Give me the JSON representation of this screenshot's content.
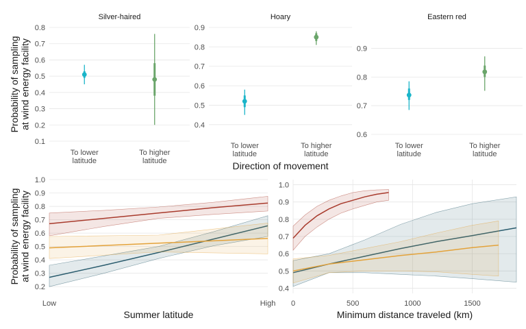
{
  "chart_data": [
    {
      "type": "scatter",
      "title": "Silver-haired",
      "ylabel": "Probability of sampling\nat wind energy facility",
      "xlabel": "",
      "categories": [
        "To lower\nlatitude",
        "To higher\nlatitude"
      ],
      "ylim": [
        0.1,
        0.8
      ],
      "yticks": [
        0.1,
        0.2,
        0.3,
        0.4,
        0.5,
        0.6,
        0.7,
        0.8
      ],
      "grid": true,
      "points": [
        {
          "category": "To lower\nlatitude",
          "estimate": 0.51,
          "inner": [
            0.49,
            0.53
          ],
          "outer": [
            0.45,
            0.57
          ],
          "color": "#1bb5c9"
        },
        {
          "category": "To higher\nlatitude",
          "estimate": 0.48,
          "inner": [
            0.38,
            0.58
          ],
          "outer": [
            0.2,
            0.76
          ],
          "color": "#6aa56a"
        }
      ]
    },
    {
      "type": "scatter",
      "title": "Hoary",
      "xlabel": "Direction of movement",
      "categories": [
        "To lower\nlatitude",
        "To higher\nlatitude"
      ],
      "ylim": [
        0.35,
        0.9
      ],
      "yticks": [
        0.4,
        0.5,
        0.6,
        0.7,
        0.8,
        0.9
      ],
      "grid": true,
      "points": [
        {
          "category": "To lower\nlatitude",
          "estimate": 0.52,
          "inner": [
            0.49,
            0.55
          ],
          "outer": [
            0.45,
            0.58
          ],
          "color": "#1bb5c9"
        },
        {
          "category": "To higher\nlatitude",
          "estimate": 0.85,
          "inner": [
            0.83,
            0.87
          ],
          "outer": [
            0.81,
            0.88
          ],
          "color": "#6aa56a"
        }
      ]
    },
    {
      "type": "scatter",
      "title": "Eastern red",
      "xlabel": "",
      "categories": [
        "To lower\nlatitude",
        "To higher\nlatitude"
      ],
      "ylim": [
        0.6,
        0.93
      ],
      "yticks": [
        0.6,
        0.7,
        0.8,
        0.9
      ],
      "grid": true,
      "points": [
        {
          "category": "To lower\nlatitude",
          "estimate": 0.737,
          "inner": [
            0.72,
            0.76
          ],
          "outer": [
            0.685,
            0.785
          ],
          "color": "#1bb5c9"
        },
        {
          "category": "To higher\nlatitude",
          "estimate": 0.818,
          "inner": [
            0.8,
            0.84
          ],
          "outer": [
            0.752,
            0.872
          ],
          "color": "#6aa56a"
        }
      ]
    },
    {
      "type": "line",
      "title": "",
      "ylabel": "Probability of sampling\nat wind energy facility",
      "xlabel": "Summer latitude",
      "xlim": [
        0,
        1
      ],
      "ylim": [
        0.15,
        1.0
      ],
      "xtick_labels": [
        {
          "x": 0,
          "label": "Low"
        },
        {
          "x": 1,
          "label": "High"
        }
      ],
      "yticks": [
        0.2,
        0.3,
        0.4,
        0.5,
        0.6,
        0.7,
        0.8,
        0.9,
        1.0
      ],
      "grid": true,
      "series": [
        {
          "color": "#2a5c6e",
          "x": [
            0,
            0.25,
            0.5,
            0.75,
            1.0
          ],
          "y": [
            0.27,
            0.36,
            0.455,
            0.555,
            0.655
          ],
          "lower": [
            0.2,
            0.3,
            0.41,
            0.505,
            0.575
          ],
          "upper": [
            0.36,
            0.43,
            0.5,
            0.61,
            0.73
          ]
        },
        {
          "color": "#e3a23a",
          "x": [
            0,
            0.5,
            1.0
          ],
          "y": [
            0.49,
            0.525,
            0.56
          ],
          "lower": [
            0.41,
            0.46,
            0.445
          ],
          "upper": [
            0.575,
            0.585,
            0.675
          ]
        },
        {
          "color": "#a83a2c",
          "x": [
            0,
            0.25,
            0.5,
            0.75,
            1.0
          ],
          "y": [
            0.67,
            0.71,
            0.75,
            0.79,
            0.825
          ],
          "lower": [
            0.58,
            0.65,
            0.71,
            0.74,
            0.765
          ],
          "upper": [
            0.75,
            0.77,
            0.795,
            0.83,
            0.875
          ]
        }
      ]
    },
    {
      "type": "line",
      "title": "",
      "xlabel": "Minimum distance traveled (km)",
      "xlim": [
        0,
        1870
      ],
      "ylim": [
        0.37,
        1.03
      ],
      "xticks": [
        0,
        500,
        1000,
        1500
      ],
      "yticks": [
        0.4,
        0.5,
        0.6,
        0.7,
        0.8,
        0.9,
        1.0
      ],
      "grid": true,
      "series": [
        {
          "color": "#2a5c6e",
          "x": [
            0,
            300,
            600,
            900,
            1200,
            1500,
            1870
          ],
          "y": [
            0.49,
            0.54,
            0.585,
            0.63,
            0.67,
            0.705,
            0.75
          ],
          "lower": [
            0.41,
            0.49,
            0.49,
            0.48,
            0.47,
            0.455,
            0.435
          ],
          "upper": [
            0.56,
            0.6,
            0.68,
            0.77,
            0.84,
            0.89,
            0.93
          ]
        },
        {
          "color": "#e3a23a",
          "x": [
            0,
            300,
            600,
            900,
            1200,
            1500,
            1720
          ],
          "y": [
            0.5,
            0.54,
            0.565,
            0.59,
            0.61,
            0.635,
            0.65
          ],
          "lower": [
            0.43,
            0.49,
            0.5,
            0.5,
            0.495,
            0.48,
            0.47
          ],
          "upper": [
            0.57,
            0.59,
            0.63,
            0.67,
            0.72,
            0.765,
            0.79
          ]
        },
        {
          "color": "#a83a2c",
          "x": [
            0,
            100,
            200,
            300,
            400,
            500,
            600,
            700,
            800
          ],
          "y": [
            0.69,
            0.765,
            0.82,
            0.86,
            0.89,
            0.91,
            0.93,
            0.945,
            0.955
          ],
          "lower": [
            0.62,
            0.7,
            0.755,
            0.8,
            0.835,
            0.86,
            0.88,
            0.9,
            0.91
          ],
          "upper": [
            0.76,
            0.825,
            0.875,
            0.91,
            0.935,
            0.955,
            0.965,
            0.97,
            0.972
          ]
        }
      ]
    }
  ]
}
